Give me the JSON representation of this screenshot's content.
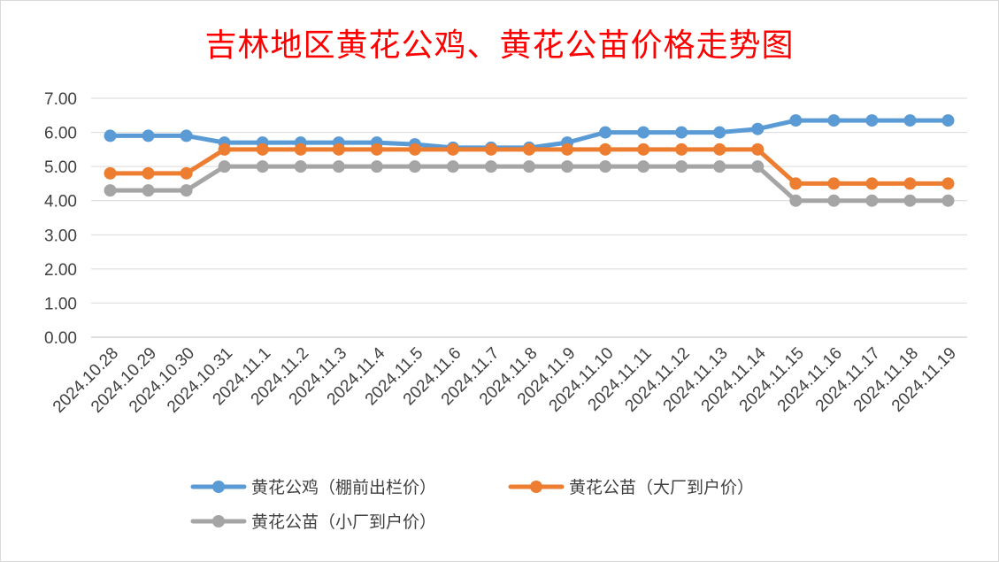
{
  "chart_data": {
    "type": "line",
    "title": "吉林地区黄花公鸡、黄花公苗价格走势图",
    "xlabel": "",
    "ylabel": "",
    "ylim": [
      0,
      7
    ],
    "ytick_step": 1,
    "ytick_labels": [
      "0.00",
      "1.00",
      "2.00",
      "3.00",
      "4.00",
      "5.00",
      "6.00",
      "7.00"
    ],
    "grid": true,
    "legend_position": "bottom",
    "categories": [
      "2024.10.28",
      "2024.10.29",
      "2024.10.30",
      "2024.10.31",
      "2024.11.1",
      "2024.11.2",
      "2024.11.3",
      "2024.11.4",
      "2024.11.5",
      "2024.11.6",
      "2024.11.7",
      "2024.11.8",
      "2024.11.9",
      "2024.11.10",
      "2024.11.11",
      "2024.11.12",
      "2024.11.13",
      "2024.11.14",
      "2024.11.15",
      "2024.11.16",
      "2024.11.17",
      "2024.11.18",
      "2024.11.19"
    ],
    "series": [
      {
        "name": "黄花公鸡（棚前出栏价）",
        "color": "#5b9bd5",
        "values": [
          5.9,
          5.9,
          5.9,
          5.7,
          5.7,
          5.7,
          5.7,
          5.7,
          5.65,
          5.55,
          5.55,
          5.55,
          5.7,
          6.0,
          6.0,
          6.0,
          6.0,
          6.1,
          6.35,
          6.35,
          6.35,
          6.35,
          6.35
        ]
      },
      {
        "name": "黄花公苗（大厂到户价）",
        "color": "#ed7d31",
        "values": [
          4.8,
          4.8,
          4.8,
          5.5,
          5.5,
          5.5,
          5.5,
          5.5,
          5.5,
          5.5,
          5.5,
          5.5,
          5.5,
          5.5,
          5.5,
          5.5,
          5.5,
          5.5,
          4.5,
          4.5,
          4.5,
          4.5,
          4.5
        ]
      },
      {
        "name": "黄花公苗（小厂到户价）",
        "color": "#a5a5a5",
        "values": [
          4.3,
          4.3,
          4.3,
          5.0,
          5.0,
          5.0,
          5.0,
          5.0,
          5.0,
          5.0,
          5.0,
          5.0,
          5.0,
          5.0,
          5.0,
          5.0,
          5.0,
          5.0,
          4.0,
          4.0,
          4.0,
          4.0,
          4.0
        ]
      }
    ]
  }
}
